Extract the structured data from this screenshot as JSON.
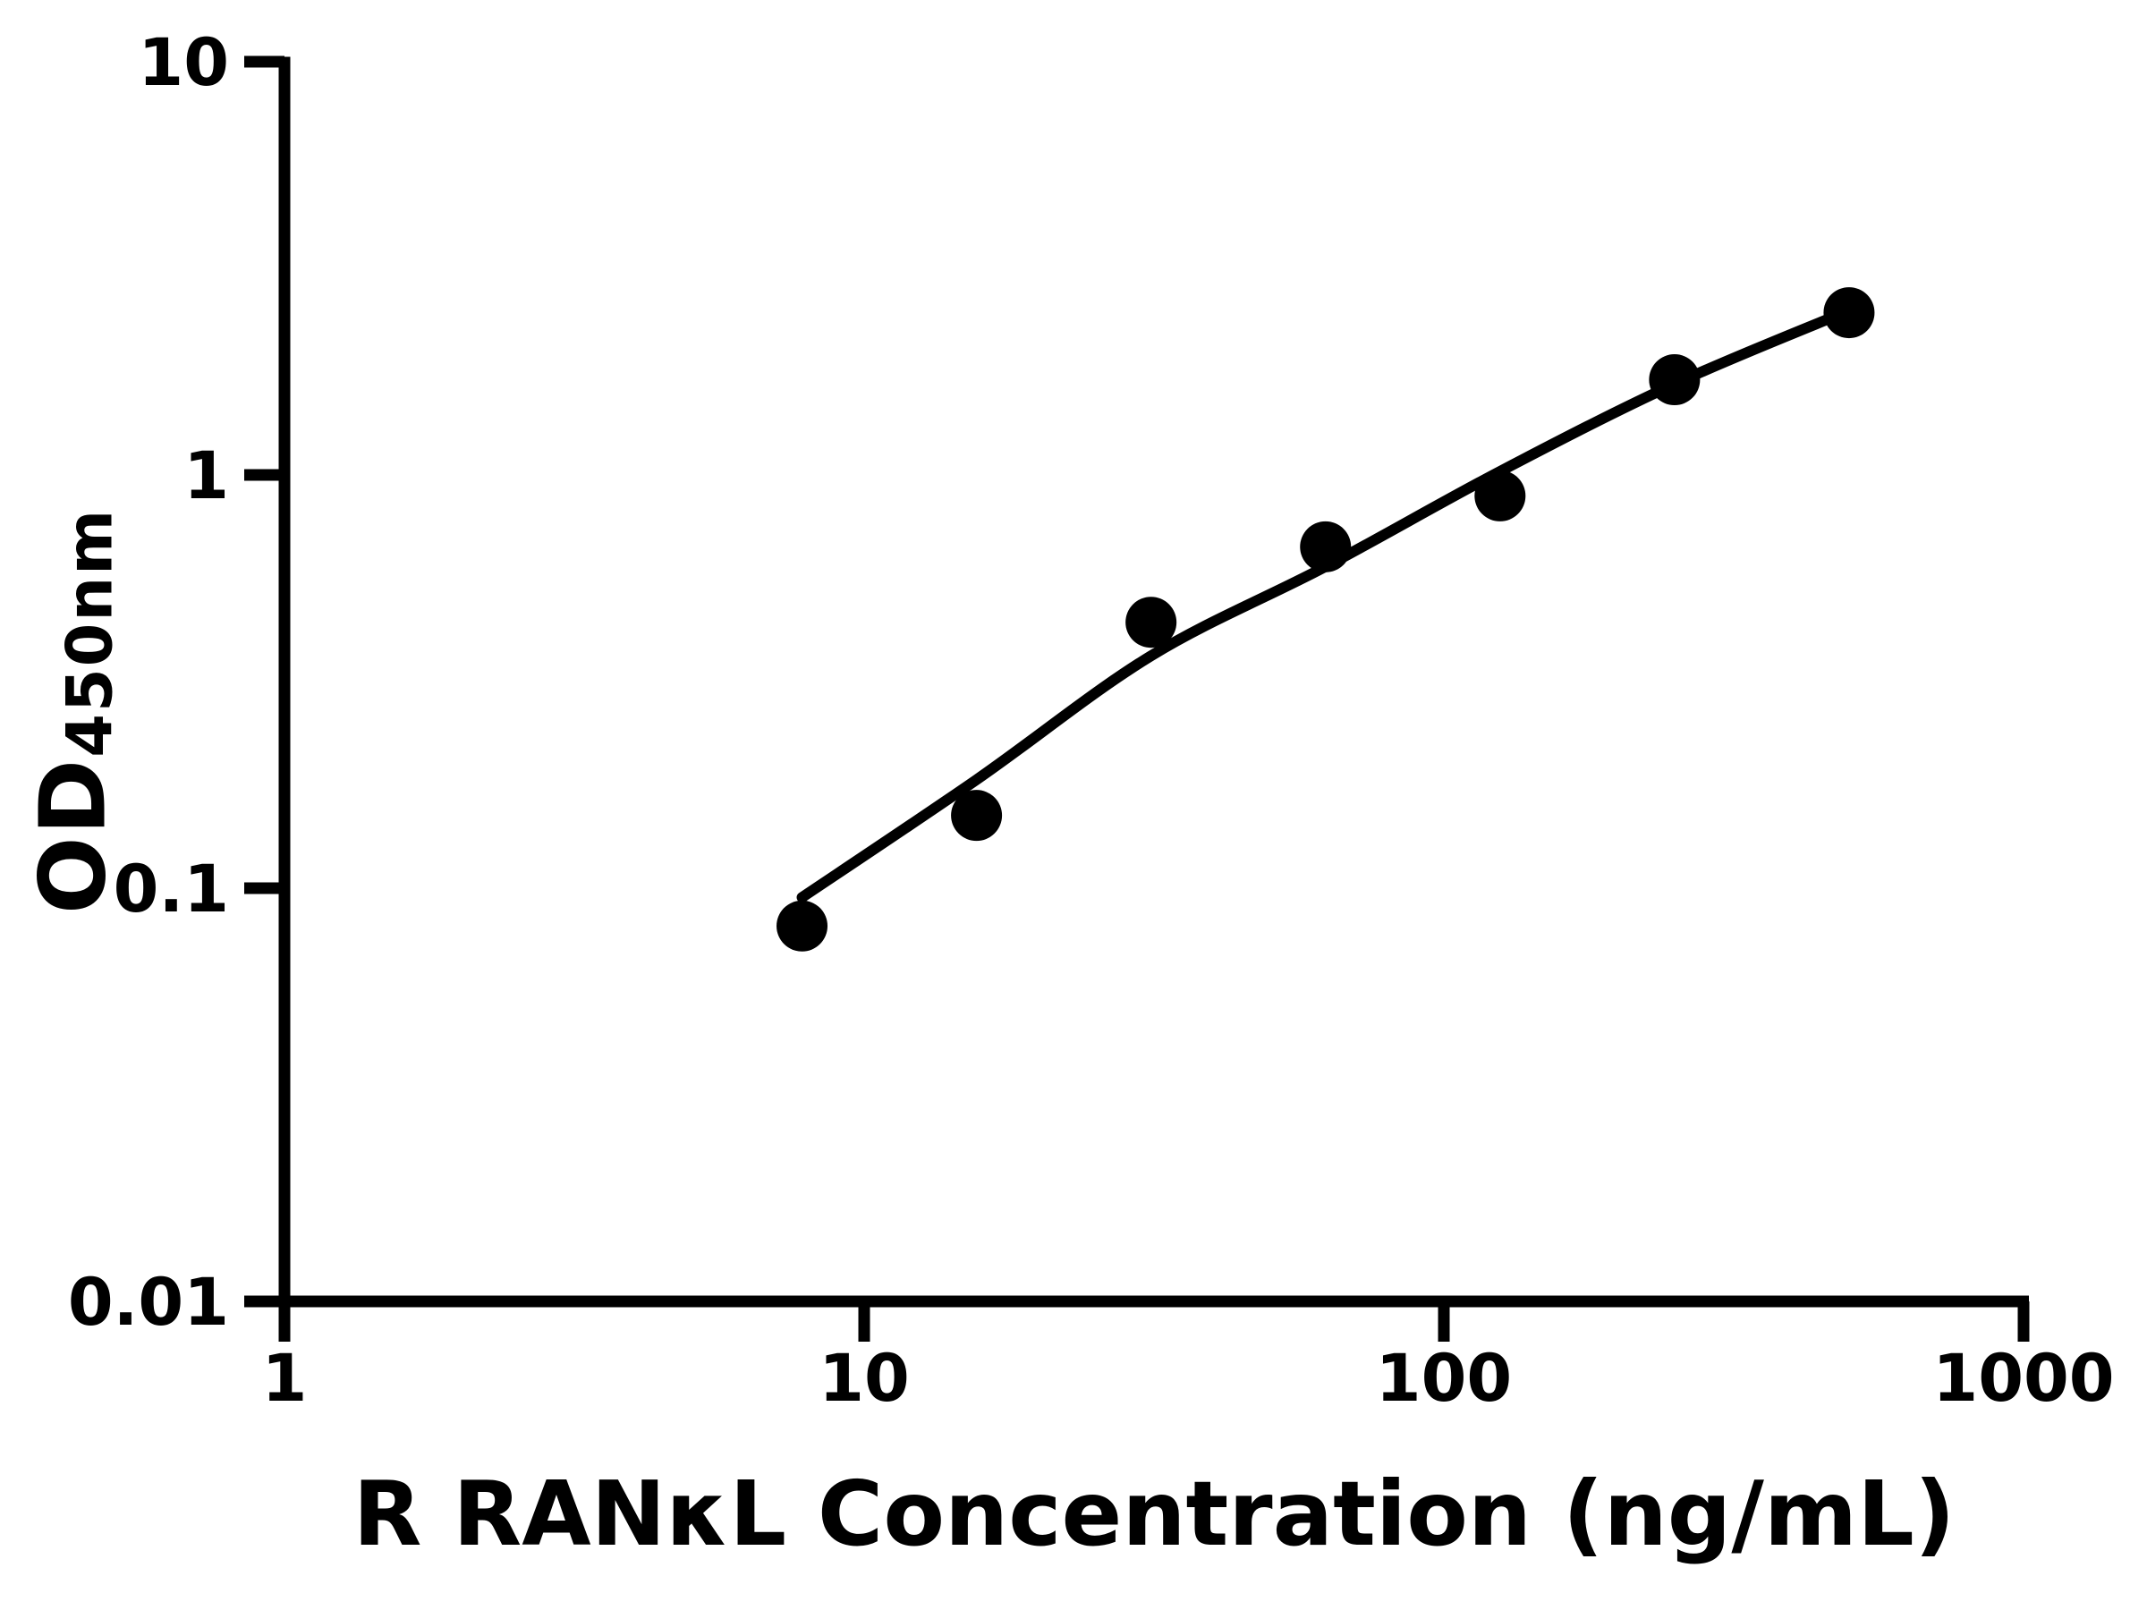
{
  "chart_data": {
    "type": "scatter",
    "title": "",
    "xlabel": "R RANκL Concentration (ng/mL)",
    "ylabel": "OD450nm",
    "ylabel_main": "OD",
    "ylabel_sub": "450nm",
    "x_scale": "log10",
    "y_scale": "log10",
    "xlim": [
      1,
      1000
    ],
    "ylim": [
      0.01,
      10
    ],
    "grid": false,
    "legend": false,
    "colors": {
      "ink": "#000000",
      "background": "#ffffff"
    },
    "x_ticks": [
      {
        "value": 1,
        "label": "1"
      },
      {
        "value": 10,
        "label": "10"
      },
      {
        "value": 100,
        "label": "100"
      },
      {
        "value": 1000,
        "label": "1000"
      }
    ],
    "y_ticks": [
      {
        "value": 10,
        "label": "10"
      },
      {
        "value": 1,
        "label": "1"
      },
      {
        "value": 0.1,
        "label": "0.1"
      },
      {
        "value": 0.01,
        "label": "0.01"
      }
    ],
    "series": [
      {
        "name": "standard-points",
        "type": "scatter",
        "marker": "filled-circle",
        "color": "#000000",
        "points": [
          {
            "x": 7.8125,
            "y": 0.081
          },
          {
            "x": 15.625,
            "y": 0.15
          },
          {
            "x": 31.25,
            "y": 0.44
          },
          {
            "x": 62.5,
            "y": 0.67
          },
          {
            "x": 125,
            "y": 0.89
          },
          {
            "x": 250,
            "y": 1.7
          },
          {
            "x": 500,
            "y": 2.47
          }
        ]
      },
      {
        "name": "fitted-curve",
        "type": "line",
        "color": "#000000",
        "points": [
          {
            "x": 7.8125,
            "y": 0.095
          },
          {
            "x": 15.625,
            "y": 0.183
          },
          {
            "x": 31.25,
            "y": 0.365
          },
          {
            "x": 62.5,
            "y": 0.6
          },
          {
            "x": 125,
            "y": 1.02
          },
          {
            "x": 250,
            "y": 1.66
          },
          {
            "x": 500,
            "y": 2.5
          }
        ]
      }
    ]
  }
}
